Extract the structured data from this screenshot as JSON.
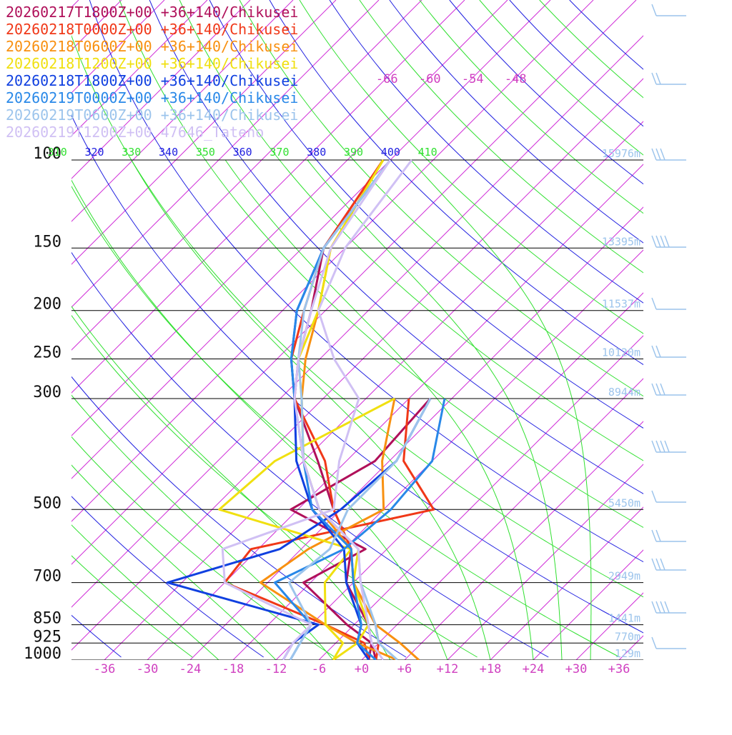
{
  "chart_data": {
    "type": "line",
    "legend": [
      {
        "label": "20260217T1800Z+00 +36+140/Chikusei",
        "color": "#b0105a"
      },
      {
        "label": "20260218T0000Z+00 +36+140/Chikusei",
        "color": "#f03818"
      },
      {
        "label": "20260218T0600Z+00 +36+140/Chikusei",
        "color": "#f89010"
      },
      {
        "label": "20260218T1200Z+00 +36+140/Chikusei",
        "color": "#f0e010"
      },
      {
        "label": "20260218T1800Z+00 +36+140/Chikusei",
        "color": "#1040e0"
      },
      {
        "label": "20260219T0000Z+00 +36+140/Chikusei",
        "color": "#2888e8"
      },
      {
        "label": "20260219T0600Z+00 +36+140/Chikusei",
        "color": "#9cc4ec"
      },
      {
        "label": "20260219T1200Z+00 47646_Tateno",
        "color": "#d0c0f4"
      }
    ],
    "pressure_levels": [
      {
        "p": 100,
        "label": "100",
        "height": "15976m"
      },
      {
        "p": 150,
        "label": "150",
        "height": "13395m"
      },
      {
        "p": 200,
        "label": "200",
        "height": "11537m"
      },
      {
        "p": 250,
        "label": "250",
        "height": "10120m"
      },
      {
        "p": 300,
        "label": "300",
        "height": "8944m"
      },
      {
        "p": 500,
        "label": "500",
        "height": "5450m"
      },
      {
        "p": 700,
        "label": "700",
        "height": "2949m"
      },
      {
        "p": 850,
        "label": "850",
        "height": "1441m"
      },
      {
        "p": 925,
        "label": "925",
        "height": "770m"
      },
      {
        "p": 1000,
        "label": "1000",
        "height": "129m"
      }
    ],
    "temperature_ticks": [
      "-36",
      "-30",
      "-24",
      "-18",
      "-12",
      "-6",
      "+0",
      "+6",
      "+12",
      "+18",
      "+24",
      "+30",
      "+36"
    ],
    "upper_temperature_ticks": [
      "-66",
      "-60",
      "-54",
      "-48"
    ],
    "theta_labels": [
      "310",
      "320",
      "330",
      "340",
      "350",
      "360",
      "370",
      "380",
      "390",
      "400",
      "410"
    ],
    "series": [
      {
        "name": "20260217T1800Z+00 +36+140/Chikusei",
        "temp": [
          [
            1000,
            2
          ],
          [
            925,
            -1
          ],
          [
            850,
            -4
          ],
          [
            700,
            -13
          ],
          [
            600,
            -17
          ],
          [
            500,
            -25
          ],
          [
            400,
            -34
          ],
          [
            300,
            -46
          ],
          [
            250,
            -51
          ],
          [
            200,
            -56
          ],
          [
            150,
            -63
          ],
          [
            100,
            -67
          ]
        ],
        "dew": [
          [
            1000,
            1
          ],
          [
            925,
            -1
          ],
          [
            850,
            -7
          ],
          [
            700,
            -19
          ],
          [
            600,
            -15
          ],
          [
            500,
            -31
          ],
          [
            400,
            -26
          ],
          [
            300,
            -27
          ]
        ]
      },
      {
        "name": "20260218T0000Z+00 +36+140/Chikusei",
        "temp": [
          [
            1000,
            2
          ],
          [
            925,
            0
          ],
          [
            850,
            -3
          ],
          [
            700,
            -12
          ],
          [
            600,
            -17
          ],
          [
            500,
            -25
          ],
          [
            400,
            -33
          ],
          [
            300,
            -46
          ],
          [
            250,
            -52
          ],
          [
            200,
            -57
          ],
          [
            150,
            -63
          ],
          [
            100,
            -67
          ]
        ],
        "dew": [
          [
            1000,
            1
          ],
          [
            925,
            -2
          ],
          [
            850,
            -10
          ],
          [
            700,
            -30
          ],
          [
            600,
            -31
          ],
          [
            500,
            -11
          ],
          [
            400,
            -22
          ],
          [
            300,
            -30
          ]
        ]
      },
      {
        "name": "20260218T0600Z+00 +36+140/Chikusei",
        "temp": [
          [
            1000,
            8
          ],
          [
            925,
            3
          ],
          [
            850,
            -3
          ],
          [
            700,
            -12
          ],
          [
            600,
            -17
          ],
          [
            500,
            -27
          ],
          [
            400,
            -36
          ],
          [
            300,
            -45
          ],
          [
            250,
            -50
          ],
          [
            200,
            -55
          ],
          [
            150,
            -62
          ],
          [
            100,
            -67
          ]
        ],
        "dew": [
          [
            1000,
            5
          ],
          [
            925,
            -3
          ],
          [
            850,
            -10
          ],
          [
            700,
            -25
          ],
          [
            600,
            -23
          ],
          [
            500,
            -18
          ],
          [
            400,
            -25
          ],
          [
            300,
            -32
          ]
        ]
      },
      {
        "name": "20260218T1200Z+00 +36+140/Chikusei",
        "temp": [
          [
            1000,
            -4
          ],
          [
            925,
            -3
          ],
          [
            850,
            -4
          ],
          [
            700,
            -12
          ],
          [
            600,
            -16
          ],
          [
            500,
            -27
          ],
          [
            400,
            -36
          ],
          [
            300,
            -45
          ],
          [
            250,
            -51
          ],
          [
            200,
            -55
          ],
          [
            150,
            -62
          ],
          [
            100,
            -67
          ]
        ],
        "dew": [
          [
            1000,
            -4
          ],
          [
            925,
            -5
          ],
          [
            850,
            -10
          ],
          [
            700,
            -16
          ],
          [
            600,
            -17
          ],
          [
            500,
            -41
          ],
          [
            400,
            -40
          ],
          [
            300,
            -32
          ]
        ]
      },
      {
        "name": "20260218T1800Z+00 +36+140/Chikusei",
        "temp": [
          [
            1000,
            1
          ],
          [
            925,
            -3
          ],
          [
            850,
            -5
          ],
          [
            700,
            -13
          ],
          [
            600,
            -18
          ],
          [
            500,
            -28
          ],
          [
            400,
            -37
          ],
          [
            300,
            -46
          ],
          [
            250,
            -52
          ],
          [
            200,
            -58
          ],
          [
            150,
            -63
          ],
          [
            100,
            -66
          ]
        ],
        "dew": [
          [
            1000,
            -11
          ],
          [
            925,
            -12
          ],
          [
            850,
            -11
          ],
          [
            700,
            -38
          ],
          [
            600,
            -27
          ],
          [
            500,
            -24
          ],
          [
            400,
            -23
          ],
          [
            300,
            -27
          ]
        ]
      },
      {
        "name": "20260219T0000Z+00 +36+140/Chikusei",
        "temp": [
          [
            1000,
            2
          ],
          [
            925,
            -3
          ],
          [
            850,
            -5
          ],
          [
            700,
            -12
          ],
          [
            600,
            -17
          ],
          [
            500,
            -28
          ],
          [
            400,
            -36
          ],
          [
            300,
            -46
          ],
          [
            250,
            -52
          ],
          [
            200,
            -58
          ],
          [
            150,
            -63
          ],
          [
            100,
            -66
          ]
        ],
        "dew": [
          [
            1000,
            -10
          ],
          [
            925,
            -11
          ],
          [
            850,
            -12
          ],
          [
            700,
            -23
          ],
          [
            600,
            -18
          ],
          [
            500,
            -17
          ],
          [
            400,
            -18
          ],
          [
            300,
            -25
          ]
        ]
      },
      {
        "name": "20260219T0600Z+00 +36+140/Chikusei",
        "temp": [
          [
            1000,
            5
          ],
          [
            925,
            0
          ],
          [
            850,
            -3
          ],
          [
            700,
            -11
          ],
          [
            600,
            -16
          ],
          [
            500,
            -27
          ],
          [
            400,
            -36
          ],
          [
            300,
            -45
          ],
          [
            250,
            -51
          ],
          [
            200,
            -57
          ],
          [
            150,
            -63
          ],
          [
            100,
            -66
          ]
        ],
        "dew": [
          [
            1000,
            -10
          ],
          [
            925,
            -11
          ],
          [
            850,
            -12
          ],
          [
            700,
            -21
          ],
          [
            600,
            -20
          ],
          [
            500,
            -23
          ],
          [
            400,
            -23
          ],
          [
            300,
            -27
          ]
        ]
      },
      {
        "name": "20260219T1200Z+00 47646_Tateno",
        "temp": [
          [
            1000,
            3
          ],
          [
            925,
            -1
          ],
          [
            850,
            -4
          ],
          [
            700,
            -11
          ],
          [
            600,
            -16
          ],
          [
            500,
            -27
          ],
          [
            400,
            -36
          ],
          [
            300,
            -46
          ],
          [
            250,
            -51
          ],
          [
            200,
            -56
          ],
          [
            150,
            -62
          ],
          [
            100,
            -66
          ]
        ],
        "dew": [
          [
            1000,
            -11
          ],
          [
            925,
            -12
          ],
          [
            850,
            -12
          ],
          [
            700,
            -30
          ],
          [
            600,
            -35
          ],
          [
            500,
            -25
          ],
          [
            400,
            -31
          ],
          [
            300,
            -37
          ],
          [
            250,
            -46
          ],
          [
            200,
            -55
          ],
          [
            150,
            -60
          ],
          [
            100,
            -63
          ]
        ]
      }
    ],
    "wind_color": "#9cc4ec",
    "colors": {
      "isotherm": "#d030d8",
      "dry_adiabat": "#2020e0",
      "moist_adiabat": "#30e030",
      "isobar": "#000000"
    }
  }
}
